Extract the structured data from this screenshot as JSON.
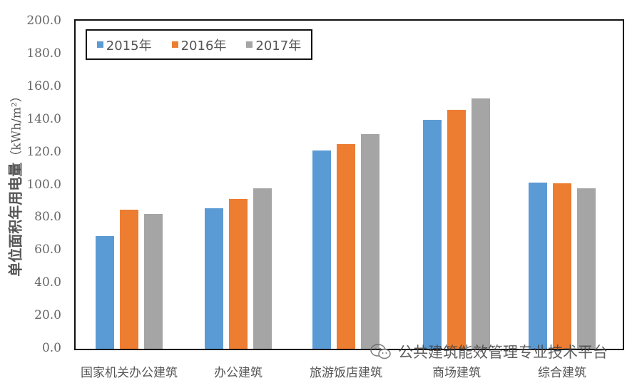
{
  "chart_data": {
    "type": "bar",
    "title": "",
    "xlabel": "",
    "ylabel": "单位面积年用电量",
    "ylabel_unit": "（kWh/m²）",
    "ylim": [
      0,
      200
    ],
    "yticks": [
      "0.0",
      "20.0",
      "40.0",
      "60.0",
      "80.0",
      "100.0",
      "120.0",
      "140.0",
      "160.0",
      "180.0",
      "200.0"
    ],
    "grid": false,
    "legend_position": "top-left inside",
    "categories": [
      "国家机关办公建筑",
      "办公建筑",
      "旅游饭店建筑",
      "商场建筑",
      "综合建筑"
    ],
    "series": [
      {
        "name": "2015年",
        "color": "#5B9BD5",
        "values": [
          68.8,
          85.8,
          121.0,
          140.0,
          101.5
        ]
      },
      {
        "name": "2016年",
        "color": "#ED7D31",
        "values": [
          85.0,
          91.5,
          125.0,
          146.0,
          101.0
        ]
      },
      {
        "name": "2017年",
        "color": "#A5A5A5",
        "values": [
          82.4,
          98.0,
          131.0,
          153.0,
          98.0
        ]
      }
    ]
  },
  "watermark": {
    "text": "公共建筑能效管理专业技术平台",
    "icon": "wechat-icon"
  }
}
